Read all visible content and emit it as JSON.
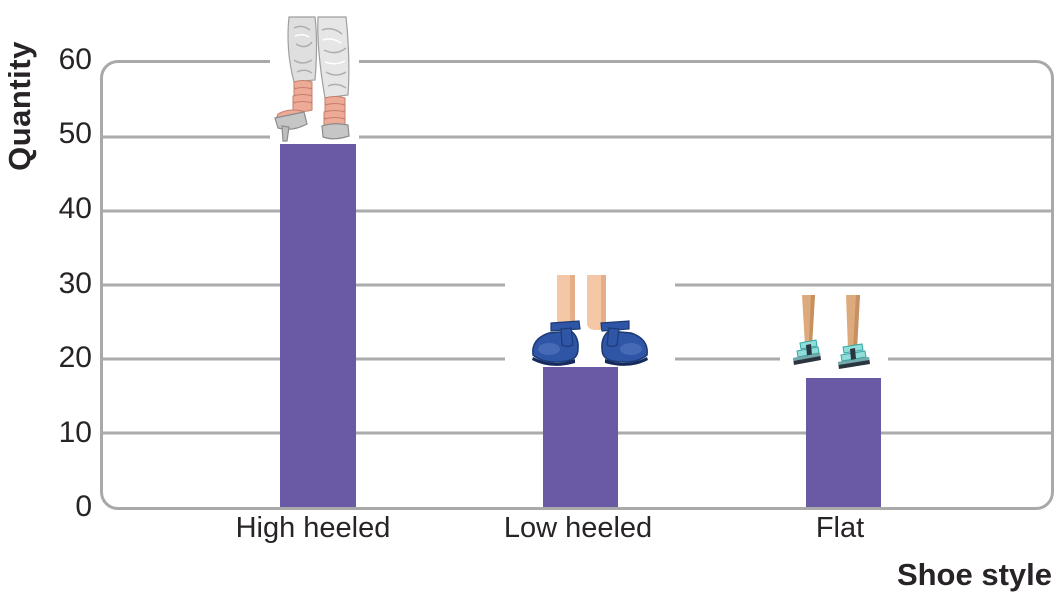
{
  "chart_data": {
    "type": "bar",
    "title": "",
    "categories": [
      "High heeled",
      "Low heeled",
      "Flat"
    ],
    "values": [
      49,
      19,
      17.5
    ],
    "xlabel": "Shoe style",
    "ylabel": "Quantity",
    "ylim": [
      0,
      60
    ],
    "yticks": [
      0,
      10,
      20,
      30,
      40,
      50,
      60
    ],
    "grid": "horizontal gridlines every 10, plot framed by rounded gray border",
    "legend": "none",
    "bar_color": "#6a5aa5",
    "gridline_color": "#ababab",
    "text_color": "#272327",
    "icons": [
      "high-heeled-shoes-clipart (silver pants, pink strappy stiletto platforms) above High heeled bar",
      "low-heeled-shoes-clipart (bare legs, blue T-strap low wedges) above Low heeled bar",
      "flat-shoes-clipart (bare legs, turquoise strappy flat sandals) above Flat bar"
    ]
  }
}
